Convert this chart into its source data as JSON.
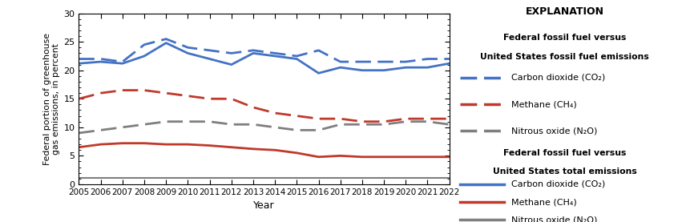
{
  "years": [
    2005,
    2006,
    2007,
    2008,
    2009,
    2010,
    2011,
    2012,
    2013,
    2014,
    2015,
    2016,
    2017,
    2018,
    2019,
    2020,
    2021,
    2022
  ],
  "co2_dashed": [
    22.0,
    22.0,
    21.5,
    24.5,
    25.5,
    24.0,
    23.5,
    23.0,
    23.5,
    23.0,
    22.5,
    23.5,
    21.5,
    21.5,
    21.5,
    21.5,
    22.0,
    22.0
  ],
  "co2_solid": [
    21.2,
    21.5,
    21.2,
    22.5,
    24.8,
    23.0,
    22.0,
    21.0,
    23.0,
    22.5,
    22.0,
    19.5,
    20.5,
    20.0,
    20.0,
    20.5,
    20.5,
    21.2
  ],
  "ch4_dashed": [
    15.0,
    16.0,
    16.5,
    16.5,
    16.0,
    15.5,
    15.0,
    15.0,
    13.5,
    12.5,
    12.0,
    11.5,
    11.5,
    11.0,
    11.0,
    11.5,
    11.5,
    11.5
  ],
  "ch4_solid": [
    6.5,
    7.0,
    7.2,
    7.2,
    7.0,
    7.0,
    6.8,
    6.5,
    6.2,
    6.0,
    5.5,
    4.8,
    5.0,
    4.8,
    4.8,
    4.8,
    4.8,
    4.8
  ],
  "n2o_dashed": [
    9.0,
    9.5,
    10.0,
    10.5,
    11.0,
    11.0,
    11.0,
    10.5,
    10.5,
    10.0,
    9.5,
    9.5,
    10.5,
    10.5,
    10.5,
    11.0,
    11.0,
    10.5
  ],
  "n2o_solid": [
    1.1,
    1.1,
    1.1,
    1.1,
    1.1,
    1.1,
    1.1,
    1.1,
    1.1,
    1.1,
    1.1,
    1.1,
    1.1,
    1.1,
    1.1,
    1.1,
    1.1,
    1.1
  ],
  "co2_color": "#4472C4",
  "ch4_color": "#C0392B",
  "n2o_color": "#7F7F7F",
  "ylim": [
    0,
    30
  ],
  "yticks": [
    0,
    5,
    10,
    15,
    20,
    25,
    30
  ],
  "ylabel": "Federal portion of greenhouse\ngas emissions, in percent",
  "xlabel": "Year",
  "expl_title": "EXPLANATION",
  "legend_subtitle1_line1": "Federal fossil fuel versus",
  "legend_subtitle1_line2": "United States fossil fuel emissions",
  "legend_subtitle2_line1": "Federal fossil fuel versus",
  "legend_subtitle2_line2": "United States total emissions",
  "legend_co2": "Carbon dioxide (CO₂)",
  "legend_ch4": "Methane (CH₄)",
  "legend_n2o": "Nitrous oxide (N₂O)"
}
